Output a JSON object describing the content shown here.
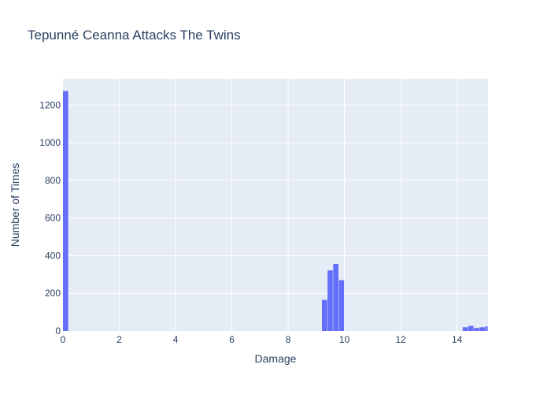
{
  "chart_data": {
    "type": "bar",
    "title": "Tepunné Ceanna Attacks The Twins",
    "xlabel": "Damage",
    "ylabel": "Number of Times",
    "xlim": [
      0,
      15.1
    ],
    "ylim": [
      0,
      1340
    ],
    "xticks": [
      0,
      2,
      4,
      6,
      8,
      10,
      12,
      14
    ],
    "yticks": [
      0,
      200,
      400,
      600,
      800,
      1000,
      1200
    ],
    "bin_width": 0.2,
    "bins": [
      {
        "x0": 0.0,
        "x1": 0.2,
        "value": 1275
      },
      {
        "x0": 9.2,
        "x1": 9.4,
        "value": 165
      },
      {
        "x0": 9.4,
        "x1": 9.6,
        "value": 322
      },
      {
        "x0": 9.6,
        "x1": 9.8,
        "value": 356
      },
      {
        "x0": 9.8,
        "x1": 10.0,
        "value": 270
      },
      {
        "x0": 14.2,
        "x1": 14.4,
        "value": 20
      },
      {
        "x0": 14.4,
        "x1": 14.6,
        "value": 27
      },
      {
        "x0": 14.6,
        "x1": 14.8,
        "value": 16
      },
      {
        "x0": 14.8,
        "x1": 15.0,
        "value": 20
      },
      {
        "x0": 15.0,
        "x1": 15.2,
        "value": 24
      }
    ],
    "grid": true,
    "legend": "none",
    "colors": {
      "bar": "#636efa",
      "plot_bg": "#e5ecf6",
      "grid": "#ffffff",
      "text": "#2a3f5f"
    }
  }
}
